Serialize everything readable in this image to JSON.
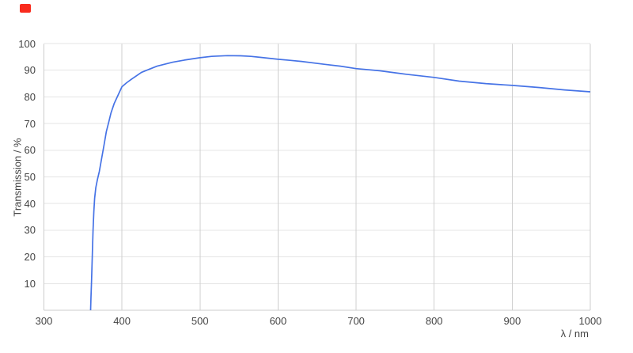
{
  "marker": {
    "color": "#f92b1d"
  },
  "chart_data": {
    "type": "line",
    "title": "",
    "xlabel": "λ / nm",
    "ylabel": "Transmission / %",
    "xlim": [
      300,
      1000
    ],
    "ylim": [
      0,
      100
    ],
    "x_ticks": [
      300,
      400,
      500,
      600,
      700,
      800,
      900,
      1000
    ],
    "y_ticks": [
      10,
      20,
      30,
      40,
      50,
      60,
      70,
      80,
      90,
      100
    ],
    "grid": true,
    "legend_visible": false,
    "line_color": "#4673e6",
    "grid_color_h": "#e4e4e4",
    "grid_color_v": "#cfcfcf",
    "axis_border_color": "#cccccc",
    "label_color": "#444444",
    "series": [
      {
        "name": "Transmission",
        "color": "#4673e6",
        "points": [
          [
            359.8,
            0
          ],
          [
            360.3,
            5
          ],
          [
            361,
            11
          ],
          [
            362,
            21
          ],
          [
            363,
            30
          ],
          [
            364,
            37
          ],
          [
            365,
            42
          ],
          [
            366.5,
            46
          ],
          [
            368.5,
            49
          ],
          [
            371,
            52
          ],
          [
            374,
            57
          ],
          [
            377,
            62
          ],
          [
            380,
            67
          ],
          [
            383,
            70.5
          ],
          [
            386,
            74
          ],
          [
            390,
            77.5
          ],
          [
            394,
            80
          ],
          [
            400,
            83.8
          ],
          [
            406,
            85.3
          ],
          [
            412,
            86.6
          ],
          [
            425,
            89.2
          ],
          [
            435,
            90.4
          ],
          [
            445,
            91.5
          ],
          [
            465,
            93.0
          ],
          [
            480,
            93.8
          ],
          [
            500,
            94.7
          ],
          [
            515,
            95.2
          ],
          [
            535,
            95.45
          ],
          [
            552,
            95.4
          ],
          [
            565,
            95.2
          ],
          [
            578,
            94.8
          ],
          [
            600,
            94.1
          ],
          [
            615,
            93.7
          ],
          [
            630,
            93.3
          ],
          [
            660,
            92.2
          ],
          [
            680,
            91.5
          ],
          [
            700,
            90.6
          ],
          [
            730,
            89.8
          ],
          [
            764,
            88.5
          ],
          [
            800,
            87.3
          ],
          [
            832,
            85.9
          ],
          [
            866,
            85.0
          ],
          [
            900,
            84.3
          ],
          [
            935,
            83.5
          ],
          [
            967,
            82.6
          ],
          [
            1000,
            81.9
          ]
        ]
      }
    ]
  }
}
